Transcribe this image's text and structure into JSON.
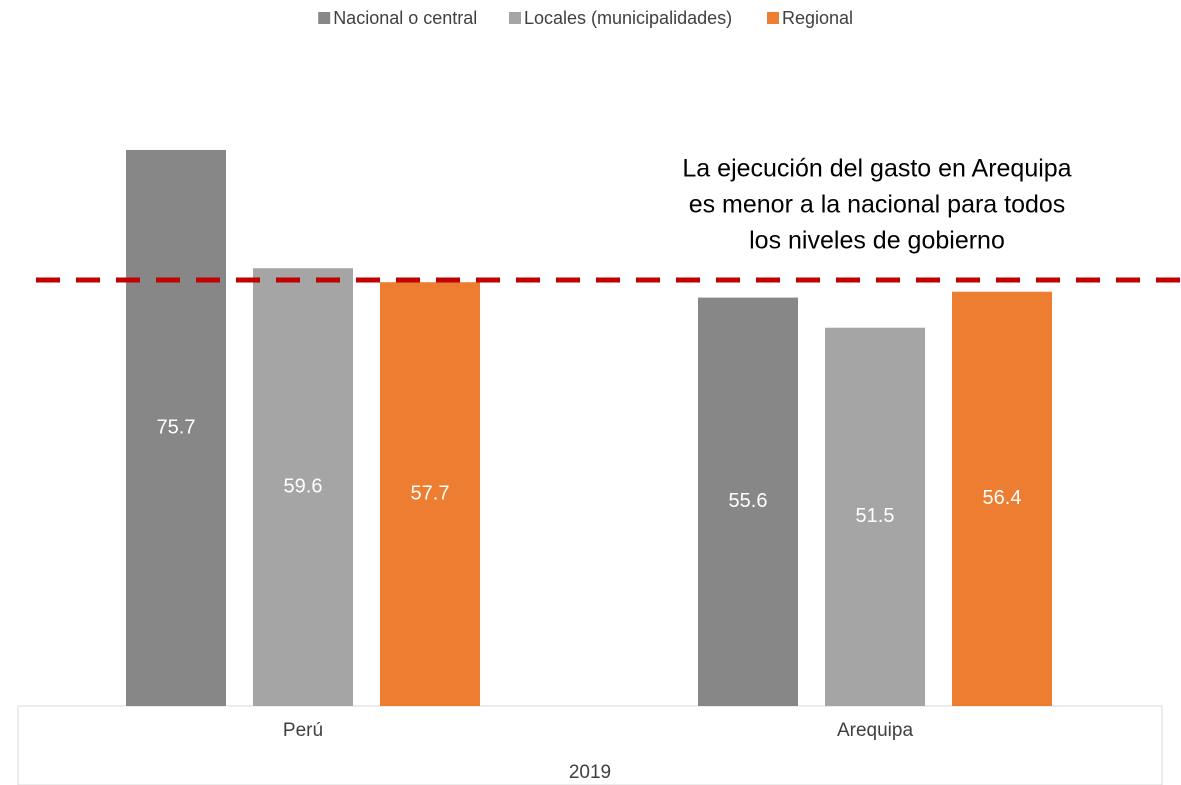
{
  "chart_data": {
    "type": "bar",
    "categories": [
      "Perú",
      "Arequipa"
    ],
    "group_label": "2019",
    "series": [
      {
        "name": "Nacional o central",
        "color": "#878787",
        "values": [
          75.7,
          55.6
        ]
      },
      {
        "name": "Locales (municipalidades)",
        "color": "#a5a5a5",
        "values": [
          59.6,
          51.5
        ]
      },
      {
        "name": "Regional",
        "color": "#ed7d31",
        "values": [
          57.7,
          56.4
        ]
      }
    ],
    "reference_line": {
      "value": 58,
      "color": "#c00000"
    },
    "annotation": [
      "La ejecución del gasto en Arequipa",
      "es menor a la nacional para todos",
      "los niveles de gobierno"
    ],
    "legend": "top"
  }
}
